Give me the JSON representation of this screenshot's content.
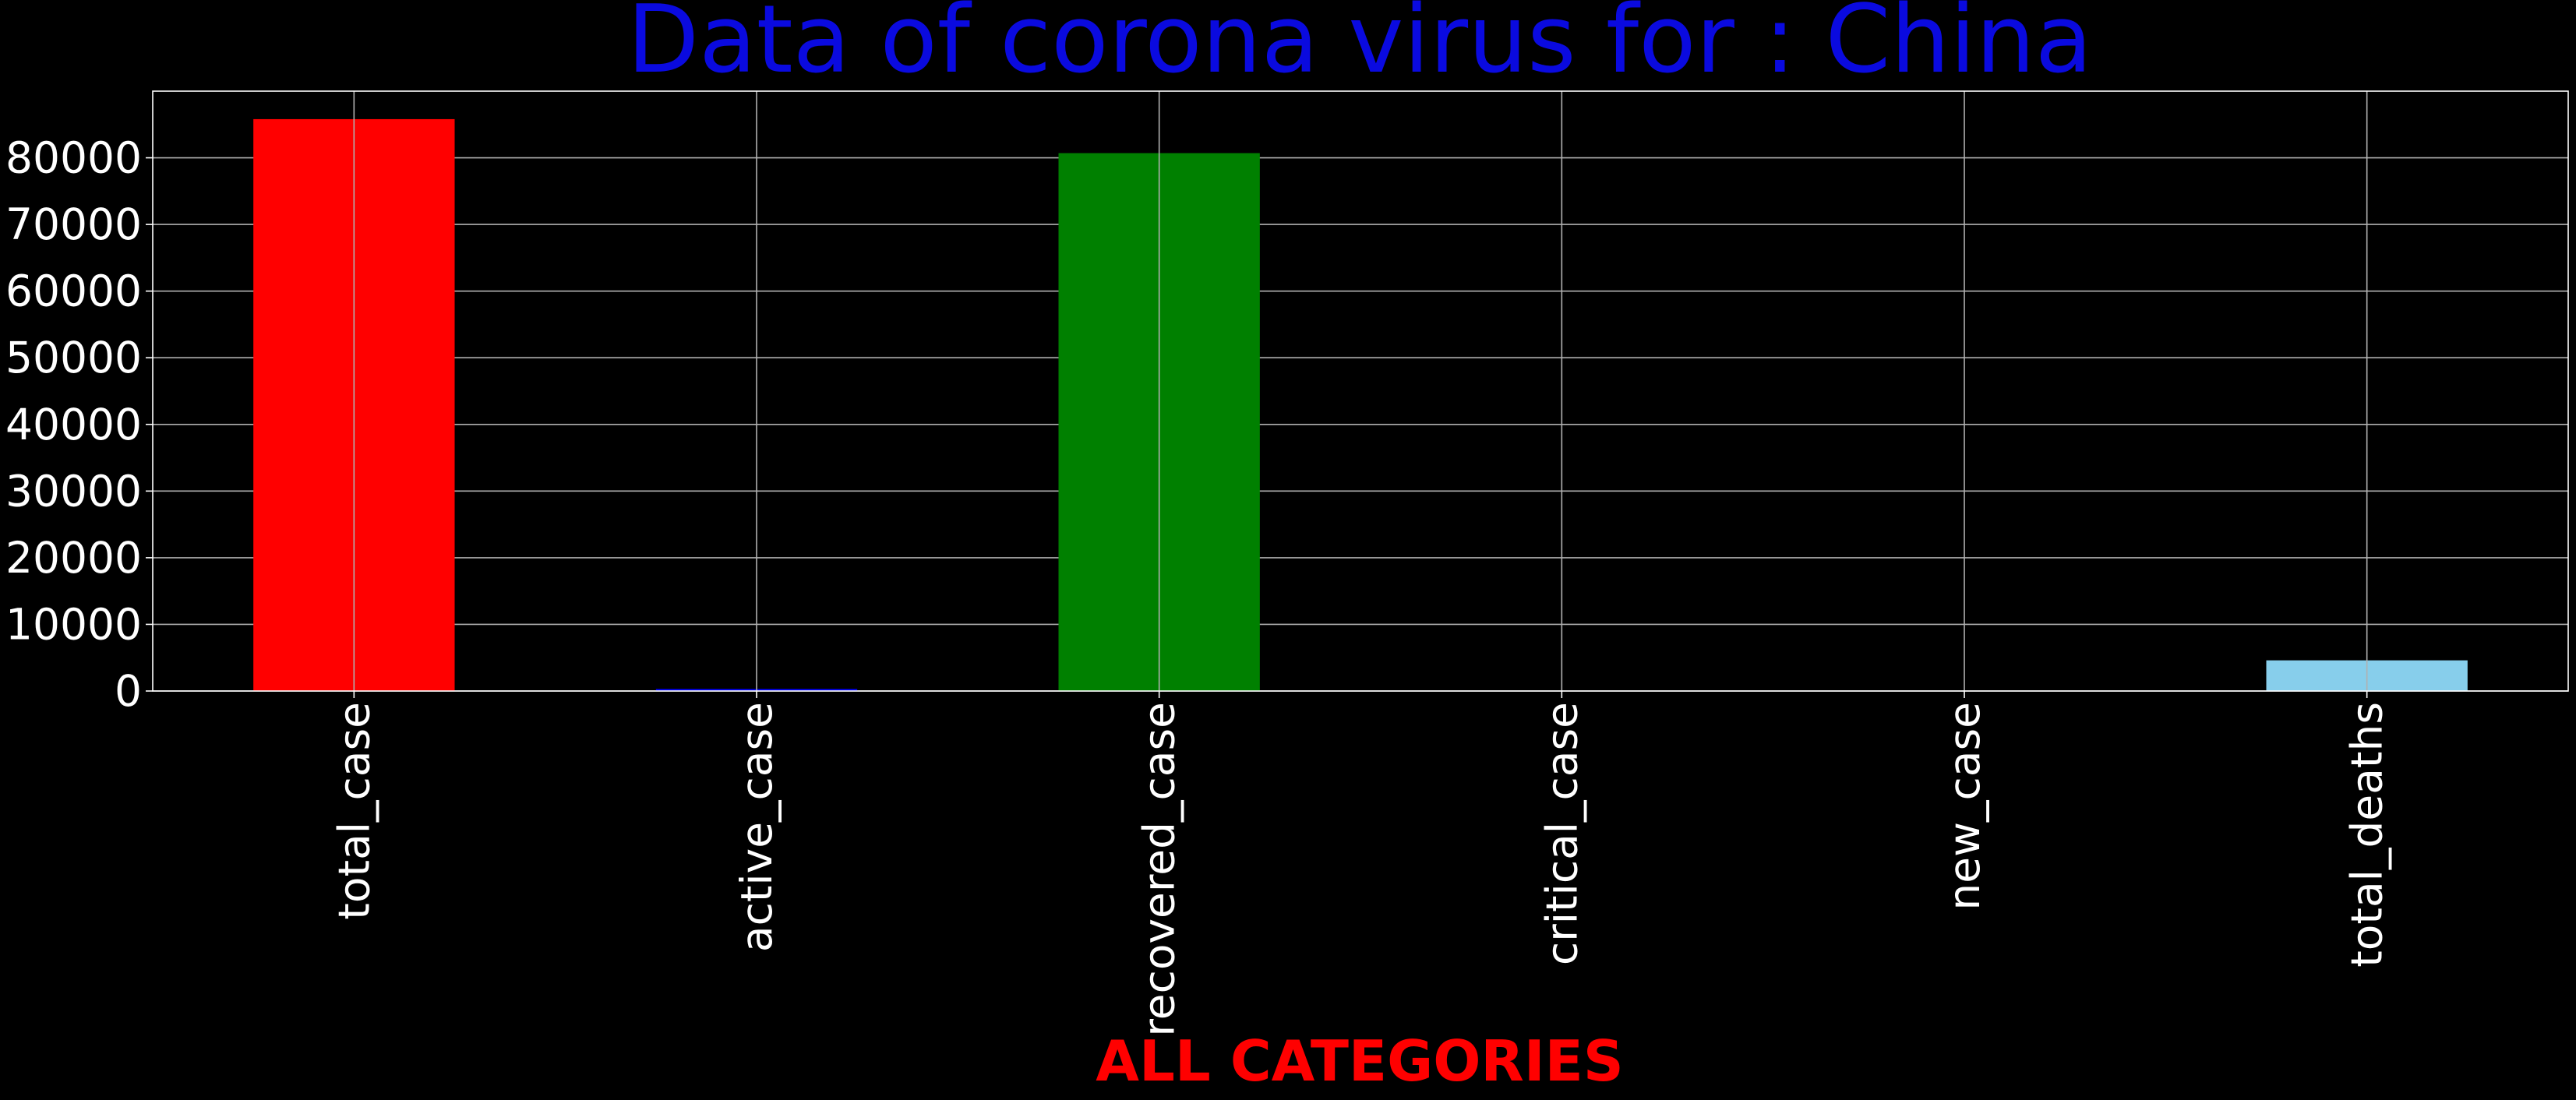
{
  "chart_data": {
    "type": "bar",
    "title": "Data of corona virus for : China",
    "xlabel": "ALL CATEGORIES",
    "ylabel": "",
    "categories": [
      "total_case",
      "active_case",
      "recovered_case",
      "critical_case",
      "new_case",
      "total_deaths"
    ],
    "values": [
      85800,
      300,
      80700,
      0,
      0,
      4600
    ],
    "ylim": [
      0,
      90000
    ],
    "yticks": [
      0,
      10000,
      20000,
      30000,
      40000,
      50000,
      60000,
      70000,
      80000
    ],
    "grid": true,
    "legend": "none"
  },
  "colors": {
    "background": "#000000",
    "title": "#0a0adf",
    "xlabel": "#ff0000",
    "ticks": "#ffffff",
    "grid": "#b0b0b0",
    "bars": [
      "#ff0000",
      "#0000ff",
      "#008000",
      "#ffff00",
      "#808080",
      "#87ceeb"
    ]
  }
}
